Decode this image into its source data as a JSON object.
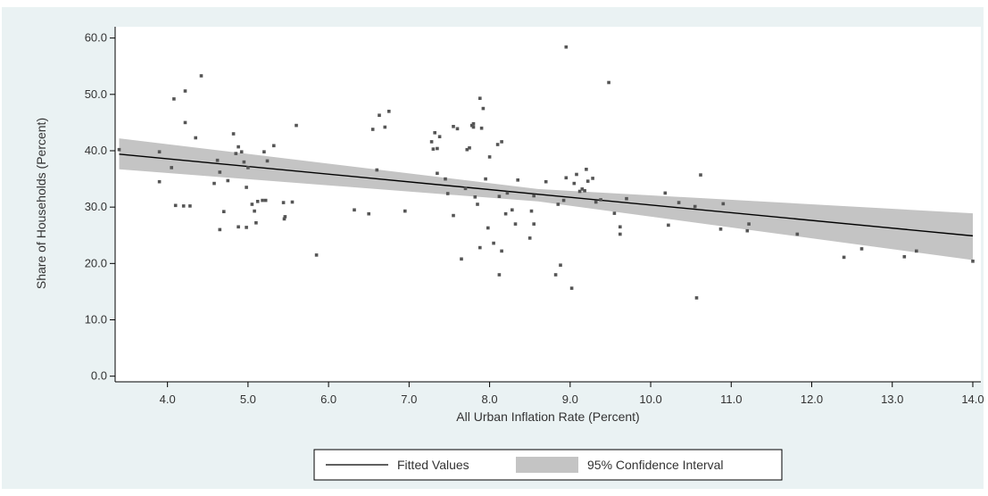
{
  "chart_data": {
    "type": "scatter",
    "title": "",
    "xlabel": "All Urban Inflation Rate (Percent)",
    "ylabel": "Share of Households (Percent)",
    "xlim": [
      3.35,
      14.1
    ],
    "ylim": [
      -1,
      62
    ],
    "x_ticks": [
      "4.0",
      "5.0",
      "6.0",
      "7.0",
      "8.0",
      "9.0",
      "10.0",
      "11.0",
      "12.0",
      "13.0",
      "14.0"
    ],
    "y_ticks": [
      "0.0",
      "10.0",
      "20.0",
      "30.0",
      "40.0",
      "50.0",
      "60.0"
    ],
    "grid": false,
    "legend_position": "bottom-center",
    "legend": [
      "Fitted Values",
      "95% Confidence Interval"
    ],
    "colors": {
      "background": "#eaf2f3",
      "plot_area": "#ffffff",
      "points": "#555555",
      "fit_line": "#000000",
      "confidence_band": "#c4c4c4"
    },
    "fitted_line": {
      "x": [
        3.4,
        14.0
      ],
      "y": [
        39.4,
        24.9
      ]
    },
    "confidence_interval": {
      "x": [
        3.4,
        8.6,
        14.0
      ],
      "upper": [
        42.2,
        33.2,
        28.9
      ],
      "lower": [
        36.7,
        31.0,
        20.6
      ]
    },
    "points": [
      [
        3.4,
        40.2
      ],
      [
        3.9,
        39.8
      ],
      [
        3.9,
        34.5
      ],
      [
        4.05,
        37.0
      ],
      [
        4.08,
        49.2
      ],
      [
        4.1,
        30.3
      ],
      [
        4.2,
        30.2
      ],
      [
        4.22,
        50.6
      ],
      [
        4.22,
        45.0
      ],
      [
        4.28,
        30.2
      ],
      [
        4.35,
        42.3
      ],
      [
        4.42,
        53.3
      ],
      [
        4.58,
        34.2
      ],
      [
        4.62,
        38.3
      ],
      [
        4.65,
        26.0
      ],
      [
        4.65,
        36.2
      ],
      [
        4.7,
        29.2
      ],
      [
        4.75,
        34.7
      ],
      [
        4.82,
        43.0
      ],
      [
        4.85,
        39.5
      ],
      [
        4.88,
        26.5
      ],
      [
        4.88,
        40.7
      ],
      [
        4.92,
        39.8
      ],
      [
        4.95,
        38.0
      ],
      [
        4.98,
        26.4
      ],
      [
        4.98,
        33.5
      ],
      [
        5.0,
        37.0
      ],
      [
        5.05,
        30.5
      ],
      [
        5.08,
        29.3
      ],
      [
        5.1,
        27.2
      ],
      [
        5.12,
        31.0
      ],
      [
        5.18,
        31.2
      ],
      [
        5.2,
        39.8
      ],
      [
        5.22,
        31.2
      ],
      [
        5.24,
        38.2
      ],
      [
        5.32,
        40.9
      ],
      [
        5.44,
        30.8
      ],
      [
        5.45,
        27.9
      ],
      [
        5.46,
        28.3
      ],
      [
        5.55,
        30.9
      ],
      [
        5.6,
        44.5
      ],
      [
        5.85,
        21.5
      ],
      [
        6.32,
        29.5
      ],
      [
        6.5,
        28.8
      ],
      [
        6.55,
        43.8
      ],
      [
        6.6,
        36.6
      ],
      [
        6.63,
        46.3
      ],
      [
        6.7,
        44.2
      ],
      [
        6.75,
        47.0
      ],
      [
        6.95,
        29.3
      ],
      [
        7.28,
        41.6
      ],
      [
        7.3,
        40.3
      ],
      [
        7.32,
        43.2
      ],
      [
        7.35,
        36.0
      ],
      [
        7.35,
        40.4
      ],
      [
        7.38,
        42.5
      ],
      [
        7.45,
        35.0
      ],
      [
        7.48,
        32.4
      ],
      [
        7.55,
        28.5
      ],
      [
        7.55,
        44.3
      ],
      [
        7.6,
        43.9
      ],
      [
        7.65,
        20.8
      ],
      [
        7.7,
        33.3
      ],
      [
        7.72,
        40.2
      ],
      [
        7.75,
        40.5
      ],
      [
        7.78,
        44.5
      ],
      [
        7.8,
        44.8
      ],
      [
        7.8,
        44.2
      ],
      [
        7.82,
        31.8
      ],
      [
        7.85,
        30.5
      ],
      [
        7.88,
        49.3
      ],
      [
        7.88,
        22.8
      ],
      [
        7.9,
        44.0
      ],
      [
        7.92,
        47.5
      ],
      [
        7.95,
        35.0
      ],
      [
        7.98,
        26.3
      ],
      [
        8.0,
        38.9
      ],
      [
        8.05,
        23.6
      ],
      [
        8.1,
        41.1
      ],
      [
        8.12,
        18.0
      ],
      [
        8.12,
        31.9
      ],
      [
        8.15,
        22.2
      ],
      [
        8.15,
        41.6
      ],
      [
        8.2,
        28.8
      ],
      [
        8.22,
        32.5
      ],
      [
        8.28,
        29.5
      ],
      [
        8.32,
        27.0
      ],
      [
        8.35,
        34.8
      ],
      [
        8.5,
        24.5
      ],
      [
        8.52,
        29.3
      ],
      [
        8.55,
        32.0
      ],
      [
        8.55,
        27.0
      ],
      [
        8.7,
        34.5
      ],
      [
        8.82,
        18.0
      ],
      [
        8.85,
        30.5
      ],
      [
        8.88,
        19.7
      ],
      [
        8.92,
        31.2
      ],
      [
        8.95,
        35.2
      ],
      [
        8.95,
        58.4
      ],
      [
        9.02,
        15.6
      ],
      [
        9.05,
        34.2
      ],
      [
        9.08,
        35.8
      ],
      [
        9.12,
        32.8
      ],
      [
        9.15,
        33.2
      ],
      [
        9.18,
        32.9
      ],
      [
        9.2,
        36.7
      ],
      [
        9.22,
        34.6
      ],
      [
        9.28,
        35.1
      ],
      [
        9.32,
        30.9
      ],
      [
        9.38,
        31.3
      ],
      [
        9.48,
        52.1
      ],
      [
        9.55,
        28.9
      ],
      [
        9.62,
        25.2
      ],
      [
        9.62,
        26.5
      ],
      [
        9.7,
        31.5
      ],
      [
        10.18,
        32.5
      ],
      [
        10.22,
        26.8
      ],
      [
        10.35,
        30.8
      ],
      [
        10.55,
        30.1
      ],
      [
        10.57,
        13.9
      ],
      [
        10.62,
        35.7
      ],
      [
        10.87,
        26.1
      ],
      [
        10.9,
        30.6
      ],
      [
        11.2,
        25.8
      ],
      [
        11.22,
        27.0
      ],
      [
        11.82,
        25.2
      ],
      [
        12.4,
        21.1
      ],
      [
        12.62,
        22.6
      ],
      [
        13.15,
        21.2
      ],
      [
        13.3,
        22.2
      ],
      [
        14.0,
        20.4
      ]
    ]
  }
}
